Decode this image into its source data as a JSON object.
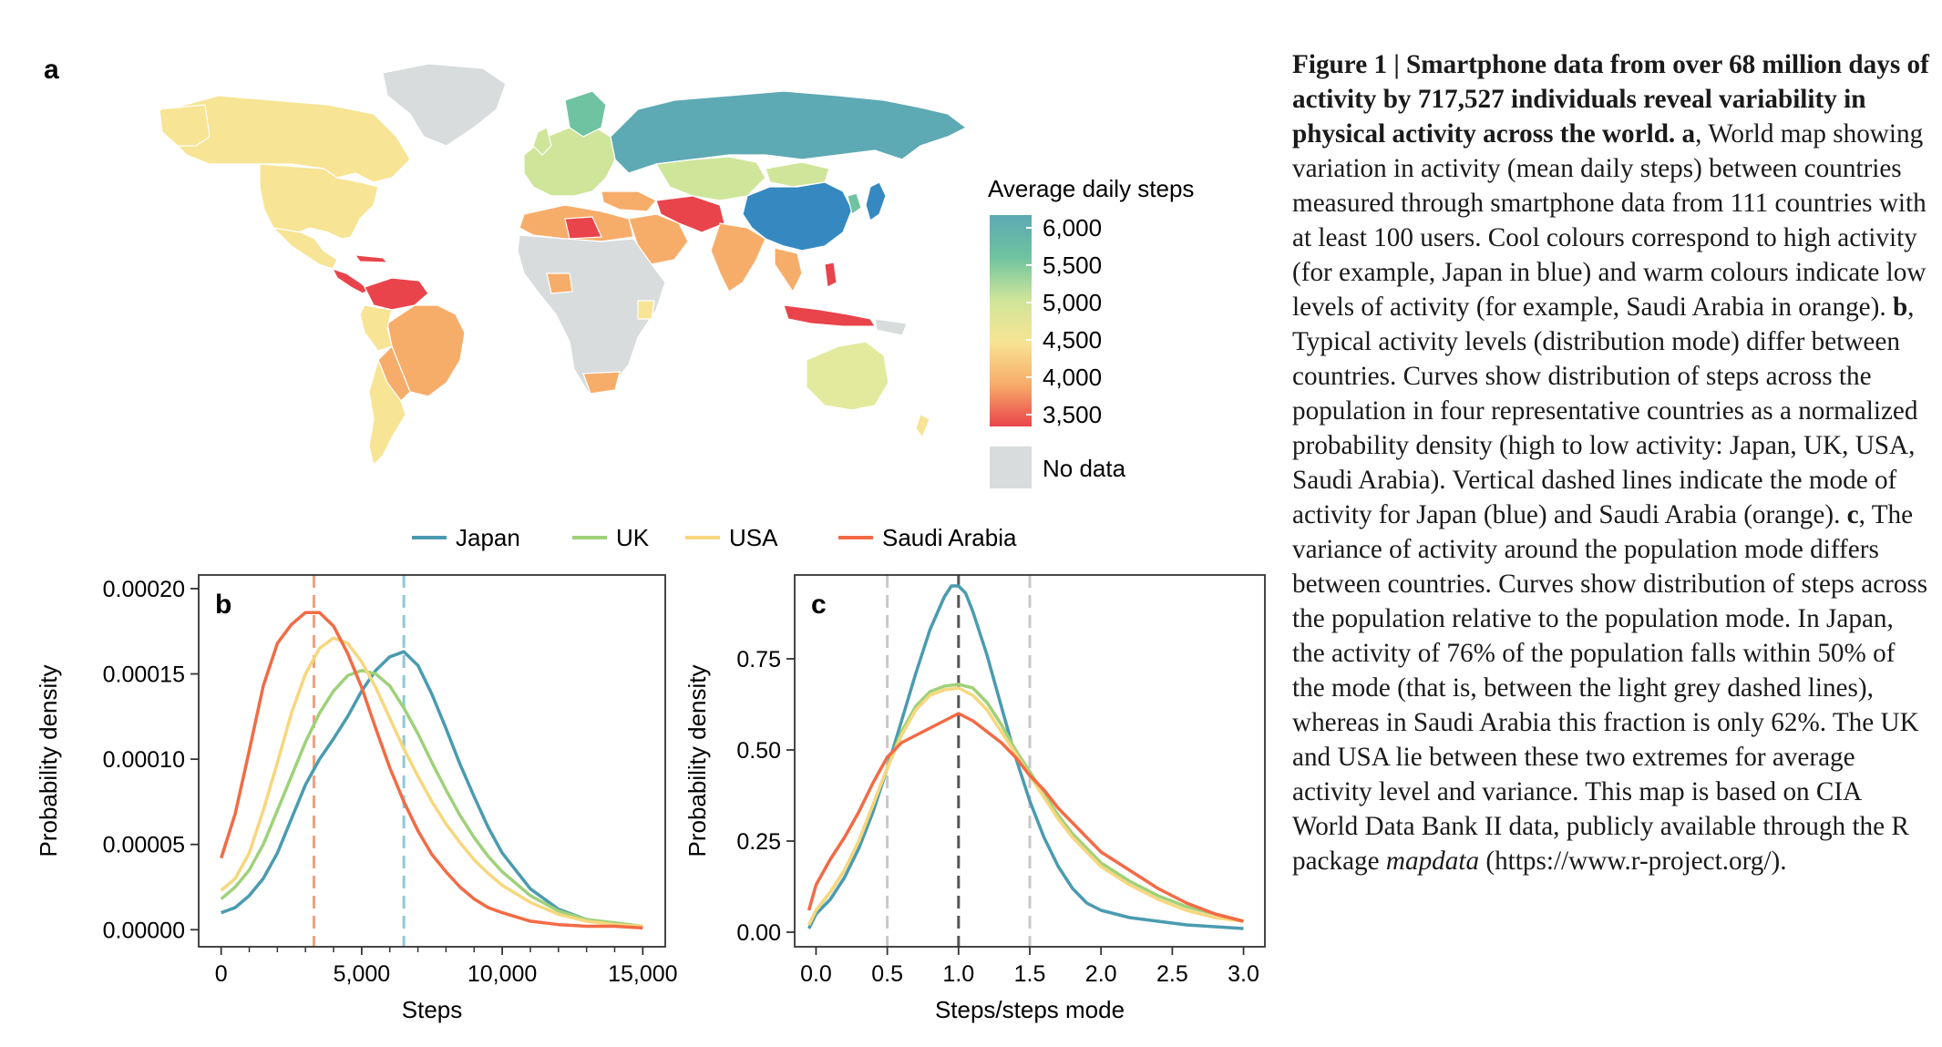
{
  "map": {
    "panel_label": "a",
    "legend_title": "Average daily steps",
    "legend_ticks": [
      "6,000",
      "5,500",
      "5,000",
      "4,500",
      "4,000",
      "3,500"
    ],
    "no_data_label": "No data",
    "colors": {
      "c6000": "#5da9b4",
      "c5500": "#6fc3a0",
      "c5000": "#cfe59a",
      "c4500": "#f7e494",
      "c4000": "#f7ad6a",
      "c3500": "#e9444b",
      "japan": "#3589c0",
      "nodata": "#d9dcdc",
      "ocean": "#ffffff"
    }
  },
  "series_legend": {
    "items": [
      {
        "label": "Japan",
        "color": "#4a9bb0"
      },
      {
        "label": "UK",
        "color": "#9fd17a"
      },
      {
        "label": "USA",
        "color": "#f7d77e"
      },
      {
        "label": "Saudi Arabia",
        "color": "#f26b45"
      }
    ]
  },
  "caption": {
    "title": "Figure 1 | Smartphone data from over 68 million days of activity by 717,527 individuals reveal variability in physical activity across the world.",
    "a_label": "a",
    "a_text": ", World map showing variation in activity (mean daily steps) between countries measured through smartphone data from 111 countries with at least 100 users. Cool colours correspond to high activity (for example, Japan in blue) and warm colours indicate low levels of activity (for example, Saudi Arabia in orange). ",
    "b_label": "b",
    "b_text": ", Typical activity levels (distribution mode) differ between countries. Curves show distribution of steps across the population in four representative countries as a normalized probability density (high to low activity: Japan, UK, USA, Saudi Arabia). Vertical dashed lines indicate the mode of activity for Japan (blue) and Saudi Arabia (orange). ",
    "c_label": "c",
    "c_text": ", The variance of activity around the population mode differs between countries. Curves show distribution of steps across the population relative to the population mode. In Japan, the activity of 76% of the population falls within 50% of the mode (that is, between the light grey dashed lines), whereas in Saudi Arabia this fraction is only 62%. The UK and USA lie between these two extremes for average activity level and variance. This map is based on CIA World Data Bank II data, publicly available through the R package ",
    "package_name": "mapdata",
    "url_text": " (https://www.r-project.org/)."
  },
  "chart_data": [
    {
      "type": "line",
      "panel_label": "b",
      "xlabel": "Steps",
      "ylabel": "Probability density",
      "xlim": [
        -800,
        15800
      ],
      "ylim": [
        -1e-05,
        0.000208
      ],
      "xticks": [
        0,
        5000,
        10000,
        15000
      ],
      "xtick_labels": [
        "0",
        "5,000",
        "10,000",
        "15,000"
      ],
      "xminor": [
        1000,
        2000,
        3000,
        4000,
        6000,
        7000,
        8000,
        9000,
        11000,
        12000,
        13000,
        14000
      ],
      "yticks": [
        0,
        5e-05,
        0.0001,
        0.00015,
        0.0002
      ],
      "ytick_labels": [
        "0.00000",
        "0.00005",
        "0.00010",
        "0.00015",
        "0.00020"
      ],
      "vlines": [
        {
          "x": 3300,
          "color": "#f2a07e"
        },
        {
          "x": 6500,
          "color": "#8fc9d6"
        }
      ],
      "series": [
        {
          "name": "Japan",
          "color": "#4a9bb0",
          "x": [
            0,
            500,
            1000,
            1500,
            2000,
            2500,
            3000,
            3500,
            4000,
            4500,
            5000,
            5500,
            6000,
            6500,
            7000,
            7500,
            8000,
            8500,
            9000,
            9500,
            10000,
            11000,
            12000,
            13000,
            14000,
            15000
          ],
          "y": [
            1e-05,
            1.3e-05,
            2e-05,
            3e-05,
            4.5e-05,
            6.5e-05,
            8.5e-05,
            0.0001,
            0.000112,
            0.000125,
            0.00014,
            0.000152,
            0.00016,
            0.000163,
            0.000155,
            0.000138,
            0.000118,
            9.7e-05,
            7.8e-05,
            6e-05,
            4.5e-05,
            2.4e-05,
            1.2e-05,
            6e-06,
            3e-06,
            2e-06
          ]
        },
        {
          "name": "UK",
          "color": "#9fd17a",
          "x": [
            0,
            500,
            1000,
            1500,
            2000,
            2500,
            3000,
            3500,
            4000,
            4500,
            5000,
            5500,
            6000,
            6500,
            7000,
            7500,
            8000,
            8500,
            9000,
            9500,
            10000,
            11000,
            12000,
            13000,
            14000,
            15000
          ],
          "y": [
            1.8e-05,
            2.5e-05,
            3.5e-05,
            5e-05,
            7e-05,
            9e-05,
            0.00011,
            0.000127,
            0.00014,
            0.000149,
            0.000152,
            0.00015,
            0.000143,
            0.00013,
            0.000115,
            9.8e-05,
            8.2e-05,
            6.7e-05,
            5.4e-05,
            4.3e-05,
            3.4e-05,
            2e-05,
            1.1e-05,
            6e-06,
            4e-06,
            2e-06
          ]
        },
        {
          "name": "USA",
          "color": "#f7d77e",
          "x": [
            0,
            500,
            1000,
            1500,
            2000,
            2500,
            3000,
            3500,
            4000,
            4500,
            5000,
            5500,
            6000,
            6500,
            7000,
            7500,
            8000,
            8500,
            9000,
            9500,
            10000,
            11000,
            12000,
            13000,
            14000,
            15000
          ],
          "y": [
            2.3e-05,
            3e-05,
            4.5e-05,
            7e-05,
            9.8e-05,
            0.000127,
            0.00015,
            0.000165,
            0.000171,
            0.000168,
            0.000157,
            0.000142,
            0.000124,
            0.000106,
            9e-05,
            7.5e-05,
            6.2e-05,
            5.1e-05,
            4.1e-05,
            3.3e-05,
            2.6e-05,
            1.6e-05,
            9e-06,
            5e-06,
            3e-06,
            2e-06
          ]
        },
        {
          "name": "Saudi Arabia",
          "color": "#f26b45",
          "x": [
            0,
            500,
            1000,
            1500,
            2000,
            2500,
            3000,
            3500,
            4000,
            4500,
            5000,
            5500,
            6000,
            6500,
            7000,
            7500,
            8000,
            8500,
            9000,
            9500,
            10000,
            11000,
            12000,
            13000,
            14000,
            15000
          ],
          "y": [
            4.2e-05,
            6.8e-05,
            0.000105,
            0.000143,
            0.000168,
            0.000179,
            0.000186,
            0.000186,
            0.000178,
            0.000162,
            0.000142,
            0.000118,
            9.5e-05,
            7.5e-05,
            5.8e-05,
            4.4e-05,
            3.4e-05,
            2.5e-05,
            1.8e-05,
            1.3e-05,
            1e-05,
            5e-06,
            3e-06,
            2e-06,
            2e-06,
            1e-06
          ]
        }
      ]
    },
    {
      "type": "line",
      "panel_label": "c",
      "xlabel": "Steps/steps mode",
      "ylabel": "Probability density",
      "xlim": [
        -0.15,
        3.15
      ],
      "ylim": [
        -0.04,
        0.98
      ],
      "xticks": [
        0,
        0.5,
        1,
        1.5,
        2,
        2.5,
        3
      ],
      "xtick_labels": [
        "0.0",
        "0.5",
        "1.0",
        "1.5",
        "2.0",
        "2.5",
        "3.0"
      ],
      "yticks": [
        0,
        0.25,
        0.5,
        0.75
      ],
      "ytick_labels": [
        "0.00",
        "0.25",
        "0.50",
        "0.75"
      ],
      "vlines": [
        {
          "x": 0.5,
          "color": "#c8c8c8"
        },
        {
          "x": 1.0,
          "color": "#555555"
        },
        {
          "x": 1.5,
          "color": "#c8c8c8"
        }
      ],
      "series": [
        {
          "name": "Japan",
          "color": "#4a9bb0",
          "x": [
            -0.05,
            0,
            0.1,
            0.2,
            0.3,
            0.4,
            0.5,
            0.6,
            0.7,
            0.8,
            0.9,
            0.95,
            1.0,
            1.05,
            1.1,
            1.2,
            1.3,
            1.4,
            1.5,
            1.6,
            1.7,
            1.8,
            1.9,
            2.0,
            2.2,
            2.4,
            2.6,
            2.8,
            3.0
          ],
          "y": [
            0.01,
            0.05,
            0.09,
            0.15,
            0.23,
            0.33,
            0.45,
            0.58,
            0.71,
            0.83,
            0.92,
            0.95,
            0.95,
            0.93,
            0.88,
            0.76,
            0.62,
            0.48,
            0.36,
            0.26,
            0.18,
            0.12,
            0.08,
            0.06,
            0.04,
            0.03,
            0.02,
            0.015,
            0.01
          ]
        },
        {
          "name": "UK",
          "color": "#9fd17a",
          "x": [
            -0.05,
            0,
            0.1,
            0.2,
            0.3,
            0.4,
            0.5,
            0.6,
            0.7,
            0.8,
            0.9,
            1.0,
            1.1,
            1.2,
            1.3,
            1.4,
            1.5,
            1.6,
            1.7,
            1.8,
            1.9,
            2.0,
            2.2,
            2.4,
            2.6,
            2.8,
            3.0
          ],
          "y": [
            0.02,
            0.06,
            0.11,
            0.17,
            0.25,
            0.35,
            0.45,
            0.55,
            0.62,
            0.66,
            0.675,
            0.68,
            0.67,
            0.63,
            0.57,
            0.5,
            0.44,
            0.38,
            0.32,
            0.27,
            0.23,
            0.19,
            0.14,
            0.1,
            0.07,
            0.05,
            0.03
          ]
        },
        {
          "name": "USA",
          "color": "#f7d77e",
          "x": [
            -0.05,
            0,
            0.1,
            0.2,
            0.3,
            0.4,
            0.5,
            0.6,
            0.7,
            0.8,
            0.9,
            1.0,
            1.1,
            1.2,
            1.3,
            1.4,
            1.5,
            1.6,
            1.7,
            1.8,
            1.9,
            2.0,
            2.2,
            2.4,
            2.6,
            2.8,
            3.0
          ],
          "y": [
            0.02,
            0.06,
            0.11,
            0.17,
            0.25,
            0.35,
            0.45,
            0.54,
            0.61,
            0.65,
            0.665,
            0.67,
            0.65,
            0.61,
            0.55,
            0.49,
            0.43,
            0.37,
            0.31,
            0.26,
            0.22,
            0.18,
            0.13,
            0.09,
            0.06,
            0.04,
            0.03
          ]
        },
        {
          "name": "Saudi Arabia",
          "color": "#f26b45",
          "x": [
            -0.05,
            0,
            0.1,
            0.2,
            0.3,
            0.4,
            0.5,
            0.6,
            0.7,
            0.8,
            0.9,
            1.0,
            1.1,
            1.2,
            1.3,
            1.4,
            1.5,
            1.6,
            1.7,
            1.8,
            1.9,
            2.0,
            2.2,
            2.4,
            2.6,
            2.8,
            3.0
          ],
          "y": [
            0.06,
            0.13,
            0.2,
            0.26,
            0.33,
            0.41,
            0.48,
            0.52,
            0.54,
            0.56,
            0.58,
            0.6,
            0.58,
            0.55,
            0.52,
            0.48,
            0.43,
            0.39,
            0.34,
            0.3,
            0.26,
            0.22,
            0.17,
            0.12,
            0.08,
            0.05,
            0.03
          ]
        }
      ]
    }
  ]
}
